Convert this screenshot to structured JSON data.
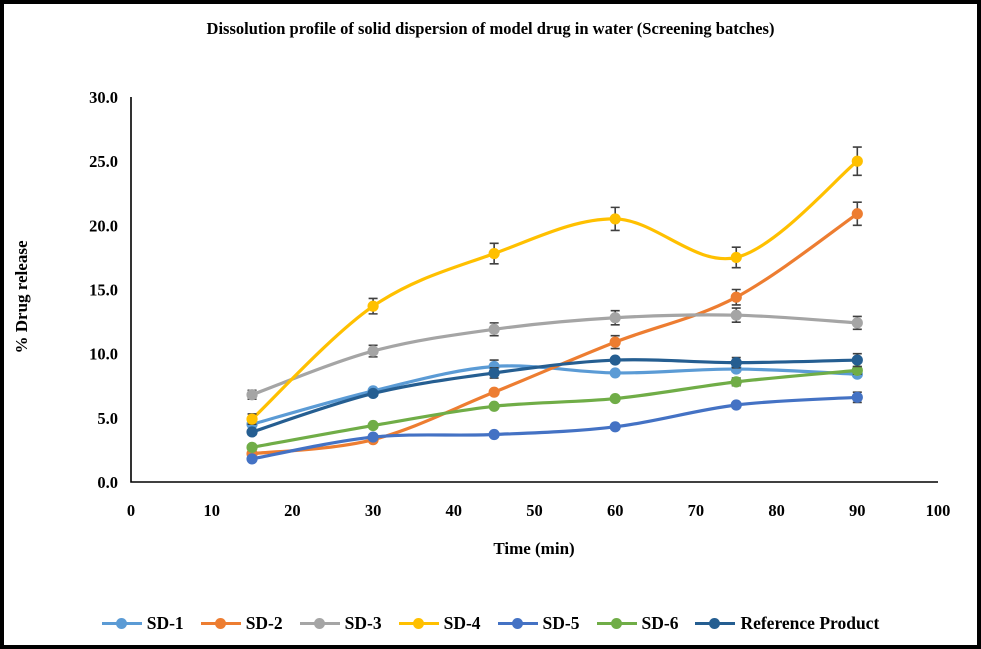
{
  "window": {
    "background": "#ffffff",
    "border_color": "#000000"
  },
  "chart_data": {
    "type": "line",
    "title": "Dissolution profile of solid dispersion of model drug in water (Screening batches)",
    "xlabel": "Time (min)",
    "ylabel": "% Drug release",
    "line_style": "smooth",
    "marker": "circle",
    "grid": false,
    "legend_position": "bottom",
    "xlim": [
      0,
      100
    ],
    "ylim": [
      0,
      30
    ],
    "x_ticks": [
      "0",
      "10",
      "20",
      "30",
      "40",
      "50",
      "60",
      "70",
      "80",
      "90",
      "100"
    ],
    "y_ticks": [
      "0.0",
      "5.0",
      "10.0",
      "15.0",
      "20.0",
      "25.0",
      "30.0"
    ],
    "x": [
      15,
      30,
      45,
      60,
      75,
      90
    ],
    "series": [
      {
        "name": "SD-1",
        "color": "#5B9BD5",
        "values": [
          4.5,
          7.1,
          9.0,
          8.5,
          8.8,
          8.4
        ],
        "errors": [
          0,
          0,
          0.5,
          0,
          0,
          0
        ]
      },
      {
        "name": "SD-2",
        "color": "#ED7D31",
        "values": [
          2.2,
          3.3,
          7.0,
          10.9,
          14.4,
          20.9
        ],
        "errors": [
          0,
          0,
          0,
          0.5,
          0.6,
          0.9
        ]
      },
      {
        "name": "SD-3",
        "color": "#A5A5A5",
        "values": [
          6.8,
          10.2,
          11.9,
          12.8,
          13.0,
          12.4
        ],
        "errors": [
          0.35,
          0.45,
          0.5,
          0.55,
          0.55,
          0.5
        ]
      },
      {
        "name": "SD-4",
        "color": "#FFC000",
        "values": [
          4.9,
          13.7,
          17.8,
          20.5,
          17.5,
          25.0
        ],
        "errors": [
          0.4,
          0.6,
          0.8,
          0.9,
          0.8,
          1.1
        ]
      },
      {
        "name": "SD-5",
        "color": "#4472C4",
        "values": [
          1.8,
          3.5,
          3.7,
          4.3,
          6.0,
          6.6
        ],
        "errors": [
          0,
          0,
          0,
          0,
          0,
          0.4
        ]
      },
      {
        "name": "SD-6",
        "color": "#70AD47",
        "values": [
          2.7,
          4.4,
          5.9,
          6.5,
          7.8,
          8.7
        ],
        "errors": [
          0,
          0,
          0,
          0,
          0.3,
          0.3
        ]
      },
      {
        "name": "Reference Product",
        "color": "#255E91",
        "values": [
          3.9,
          6.9,
          8.5,
          9.5,
          9.3,
          9.5
        ],
        "errors": [
          0,
          0,
          0.4,
          0,
          0.4,
          0.5
        ]
      }
    ],
    "error_bar_color": "#404040",
    "axis_color": "#000000"
  }
}
